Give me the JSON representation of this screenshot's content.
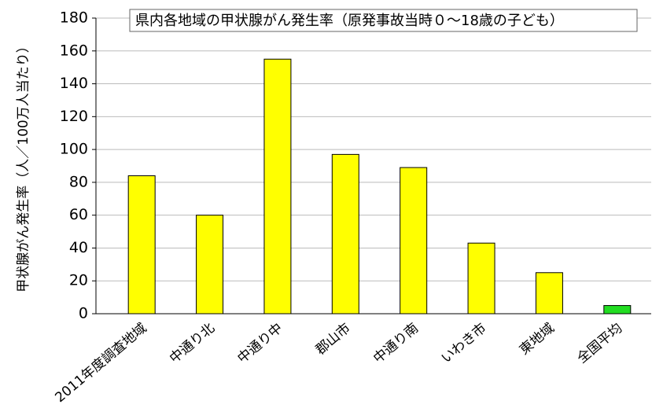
{
  "chart_data": {
    "type": "bar",
    "title": "県内各地域の甲状腺がん発生率（原発事故当時０～18歳の子ども）",
    "y_label": "甲状腺がん発生率（人／100万人当たり）",
    "categories": [
      "2011年度調査地域",
      "中通り北",
      "中通り中",
      "郡山市",
      "中通り南",
      "いわき市",
      "東地域",
      "全国平均"
    ],
    "values": [
      84,
      60,
      155,
      97,
      89,
      43,
      25,
      5
    ],
    "colors": [
      "#ffff00",
      "#ffff00",
      "#ffff00",
      "#ffff00",
      "#ffff00",
      "#ffff00",
      "#ffff00",
      "#22dd22"
    ],
    "ylim": [
      0,
      180
    ],
    "yticks": [
      0,
      20,
      40,
      60,
      80,
      100,
      120,
      140,
      160,
      180
    ],
    "grid": true
  }
}
